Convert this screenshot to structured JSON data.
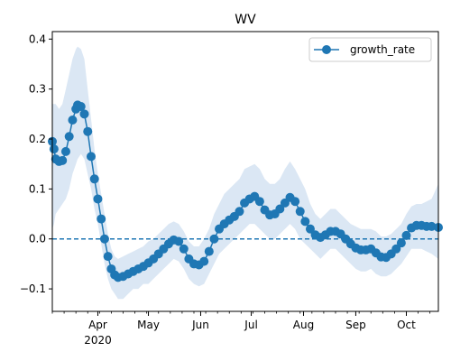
{
  "chart_data": {
    "type": "line",
    "title": "WV",
    "xlabel": "",
    "ylabel": "",
    "x_start": "2020-03-05",
    "x_end": "2020-10-20",
    "ylim": [
      -0.145,
      0.415
    ],
    "xticks": [
      {
        "date": "2020-04-01",
        "label": "Apr",
        "sub": "2020"
      },
      {
        "date": "2020-05-01",
        "label": "May",
        "sub": ""
      },
      {
        "date": "2020-06-01",
        "label": "Jun",
        "sub": ""
      },
      {
        "date": "2020-07-01",
        "label": "Jul",
        "sub": ""
      },
      {
        "date": "2020-08-01",
        "label": "Aug",
        "sub": ""
      },
      {
        "date": "2020-09-01",
        "label": "Sep",
        "sub": ""
      },
      {
        "date": "2020-10-01",
        "label": "Oct",
        "sub": ""
      }
    ],
    "yticks": [
      -0.1,
      0.0,
      0.1,
      0.2,
      0.3,
      0.4
    ],
    "ytick_labels": [
      "−0.1",
      "0.0",
      "0.1",
      "0.2",
      "0.3",
      "0.4"
    ],
    "reference_line": {
      "y": 0.0,
      "style": "dashed"
    },
    "legend": {
      "position": "top-right"
    },
    "series": [
      {
        "name": "growth_rate",
        "color": "#1f77b4",
        "band_color": "#dbe7f4",
        "points": [
          [
            "2020-03-05",
            0.195,
            0.02,
            0.27
          ],
          [
            "2020-03-06",
            0.18,
            0.03,
            0.27
          ],
          [
            "2020-03-07",
            0.16,
            0.05,
            0.27
          ],
          [
            "2020-03-09",
            0.155,
            0.06,
            0.26
          ],
          [
            "2020-03-11",
            0.157,
            0.07,
            0.27
          ],
          [
            "2020-03-13",
            0.175,
            0.08,
            0.3
          ],
          [
            "2020-03-15",
            0.205,
            0.1,
            0.33
          ],
          [
            "2020-03-17",
            0.238,
            0.13,
            0.36
          ],
          [
            "2020-03-19",
            0.26,
            0.15,
            0.38
          ],
          [
            "2020-03-20",
            0.268,
            0.16,
            0.385
          ],
          [
            "2020-03-22",
            0.265,
            0.17,
            0.38
          ],
          [
            "2020-03-24",
            0.25,
            0.16,
            0.36
          ],
          [
            "2020-03-26",
            0.215,
            0.13,
            0.3
          ],
          [
            "2020-03-28",
            0.165,
            0.1,
            0.24
          ],
          [
            "2020-03-30",
            0.12,
            0.06,
            0.18
          ],
          [
            "2020-04-01",
            0.08,
            0.03,
            0.13
          ],
          [
            "2020-04-03",
            0.04,
            -0.01,
            0.09
          ],
          [
            "2020-04-05",
            0.0,
            -0.05,
            0.05
          ],
          [
            "2020-04-07",
            -0.035,
            -0.08,
            0.01
          ],
          [
            "2020-04-09",
            -0.06,
            -0.1,
            -0.02
          ],
          [
            "2020-04-11",
            -0.072,
            -0.11,
            -0.035
          ],
          [
            "2020-04-13",
            -0.077,
            -0.12,
            -0.04
          ],
          [
            "2020-04-16",
            -0.075,
            -0.12,
            -0.035
          ],
          [
            "2020-04-19",
            -0.07,
            -0.11,
            -0.03
          ],
          [
            "2020-04-22",
            -0.065,
            -0.1,
            -0.025
          ],
          [
            "2020-04-25",
            -0.06,
            -0.1,
            -0.02
          ],
          [
            "2020-04-28",
            -0.055,
            -0.09,
            -0.015
          ],
          [
            "2020-05-01",
            -0.048,
            -0.09,
            -0.005
          ],
          [
            "2020-05-04",
            -0.04,
            -0.08,
            0.0
          ],
          [
            "2020-05-07",
            -0.03,
            -0.07,
            0.01
          ],
          [
            "2020-05-10",
            -0.02,
            -0.06,
            0.02
          ],
          [
            "2020-05-13",
            -0.01,
            -0.05,
            0.03
          ],
          [
            "2020-05-16",
            -0.002,
            -0.04,
            0.035
          ],
          [
            "2020-05-19",
            -0.005,
            -0.045,
            0.03
          ],
          [
            "2020-05-22",
            -0.02,
            -0.06,
            0.015
          ],
          [
            "2020-05-25",
            -0.04,
            -0.08,
            -0.005
          ],
          [
            "2020-05-28",
            -0.05,
            -0.09,
            -0.015
          ],
          [
            "2020-05-31",
            -0.052,
            -0.095,
            -0.015
          ],
          [
            "2020-06-03",
            -0.045,
            -0.09,
            0.0
          ],
          [
            "2020-06-06",
            -0.025,
            -0.07,
            0.02
          ],
          [
            "2020-06-09",
            0.0,
            -0.05,
            0.05
          ],
          [
            "2020-06-12",
            0.02,
            -0.03,
            0.07
          ],
          [
            "2020-06-15",
            0.03,
            -0.02,
            0.09
          ],
          [
            "2020-06-18",
            0.038,
            -0.01,
            0.1
          ],
          [
            "2020-06-21",
            0.045,
            0.0,
            0.11
          ],
          [
            "2020-06-24",
            0.055,
            0.01,
            0.12
          ],
          [
            "2020-06-27",
            0.072,
            0.02,
            0.14
          ],
          [
            "2020-06-30",
            0.08,
            0.03,
            0.145
          ],
          [
            "2020-07-03",
            0.085,
            0.03,
            0.15
          ],
          [
            "2020-07-06",
            0.075,
            0.02,
            0.14
          ],
          [
            "2020-07-09",
            0.058,
            0.01,
            0.12
          ],
          [
            "2020-07-12",
            0.048,
            0.0,
            0.11
          ],
          [
            "2020-07-15",
            0.05,
            0.0,
            0.11
          ],
          [
            "2020-07-18",
            0.06,
            0.01,
            0.12
          ],
          [
            "2020-07-21",
            0.072,
            0.02,
            0.14
          ],
          [
            "2020-07-24",
            0.083,
            0.03,
            0.155
          ],
          [
            "2020-07-27",
            0.075,
            0.02,
            0.14
          ],
          [
            "2020-07-30",
            0.055,
            0.0,
            0.12
          ],
          [
            "2020-08-02",
            0.035,
            -0.01,
            0.1
          ],
          [
            "2020-08-05",
            0.02,
            -0.02,
            0.07
          ],
          [
            "2020-08-08",
            0.008,
            -0.03,
            0.05
          ],
          [
            "2020-08-11",
            0.003,
            -0.04,
            0.04
          ],
          [
            "2020-08-14",
            0.008,
            -0.03,
            0.05
          ],
          [
            "2020-08-17",
            0.015,
            -0.02,
            0.06
          ],
          [
            "2020-08-20",
            0.015,
            -0.02,
            0.06
          ],
          [
            "2020-08-23",
            0.01,
            -0.03,
            0.05
          ],
          [
            "2020-08-26",
            0.0,
            -0.04,
            0.04
          ],
          [
            "2020-08-29",
            -0.01,
            -0.05,
            0.03
          ],
          [
            "2020-09-01",
            -0.018,
            -0.06,
            0.025
          ],
          [
            "2020-09-04",
            -0.022,
            -0.065,
            0.02
          ],
          [
            "2020-09-07",
            -0.022,
            -0.065,
            0.02
          ],
          [
            "2020-09-10",
            -0.02,
            -0.06,
            0.02
          ],
          [
            "2020-09-13",
            -0.028,
            -0.07,
            0.015
          ],
          [
            "2020-09-16",
            -0.036,
            -0.075,
            0.005
          ],
          [
            "2020-09-19",
            -0.037,
            -0.075,
            0.005
          ],
          [
            "2020-09-22",
            -0.03,
            -0.07,
            0.01
          ],
          [
            "2020-09-25",
            -0.02,
            -0.06,
            0.02
          ],
          [
            "2020-09-28",
            -0.008,
            -0.05,
            0.03
          ],
          [
            "2020-10-01",
            0.007,
            -0.035,
            0.05
          ],
          [
            "2020-10-04",
            0.022,
            -0.02,
            0.065
          ],
          [
            "2020-10-07",
            0.027,
            -0.02,
            0.07
          ],
          [
            "2020-10-10",
            0.027,
            -0.02,
            0.07
          ],
          [
            "2020-10-13",
            0.025,
            -0.025,
            0.075
          ],
          [
            "2020-10-16",
            0.025,
            -0.03,
            0.08
          ],
          [
            "2020-10-20",
            0.023,
            -0.04,
            0.11
          ]
        ]
      }
    ]
  }
}
